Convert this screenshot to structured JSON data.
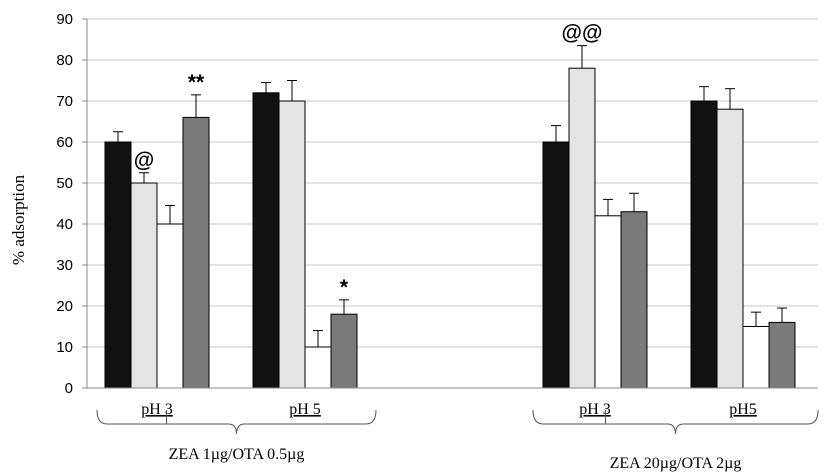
{
  "chart_data": {
    "type": "bar",
    "ylabel": "% adsorption",
    "ylim": [
      0,
      90
    ],
    "yticks": [
      0,
      10,
      20,
      30,
      40,
      50,
      60,
      70,
      80,
      90
    ],
    "grid": true,
    "bar_colors": [
      "#111111",
      "#e4e4e4",
      "#ffffff",
      "#7a7a7a"
    ],
    "gridline_color": "#c8c8c8",
    "categories": [
      "pH 3",
      "pH 5",
      "pH 3",
      "pH5"
    ],
    "groups": [
      {
        "label": "ZEA 1µg/OTA 0.5µg",
        "categories": [
          "pH 3",
          "pH 5"
        ]
      },
      {
        "label": "ZEA 20µg/OTA  2µg",
        "categories": [
          "pH 3",
          "pH5"
        ]
      }
    ],
    "series": [
      {
        "values": [
          60,
          72,
          60,
          70
        ],
        "errors": [
          2.5,
          2.5,
          4,
          3.5
        ]
      },
      {
        "values": [
          50,
          70,
          78,
          68
        ],
        "errors": [
          2.5,
          5,
          5.5,
          5
        ]
      },
      {
        "values": [
          40,
          10,
          42,
          15
        ],
        "errors": [
          4.5,
          4,
          4,
          3.5
        ]
      },
      {
        "values": [
          66,
          18,
          43,
          16
        ],
        "errors": [
          5.5,
          3.5,
          4.5,
          3.5
        ]
      }
    ],
    "annotations": [
      {
        "text": "@",
        "category": 0,
        "series": 1
      },
      {
        "text": "**",
        "category": 0,
        "series": 3
      },
      {
        "text": "*",
        "category": 1,
        "series": 3
      },
      {
        "text": "@@",
        "category": 2,
        "series": 1
      }
    ]
  }
}
